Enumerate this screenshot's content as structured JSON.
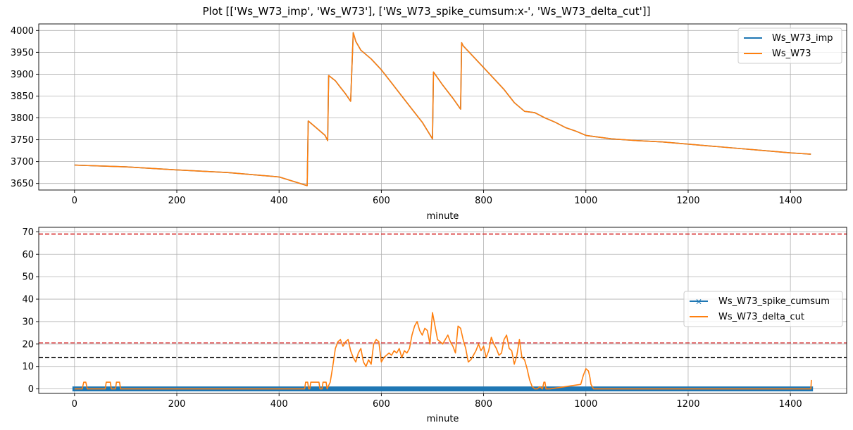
{
  "figure": {
    "title": "Plot [['Ws_W73_imp', 'Ws_W73'], ['Ws_W73_spike_cumsum:x-', 'Ws_W73_delta_cut']]"
  },
  "colors": {
    "blue": "#1f77b4",
    "orange": "#ff7f0e",
    "red_dashed": "#d62728",
    "black_dashed": "#000000"
  },
  "chart_data": [
    {
      "type": "line",
      "xlabel": "minute",
      "ylabel": "",
      "xlim": [
        -70,
        1510
      ],
      "ylim": [
        3635,
        4015
      ],
      "xticks": [
        0,
        200,
        400,
        600,
        800,
        1000,
        1200,
        1400
      ],
      "yticks": [
        3650,
        3700,
        3750,
        3800,
        3850,
        3900,
        3950,
        4000
      ],
      "grid": true,
      "legend": "top-right",
      "series": [
        {
          "name": "Ws_W73_imp",
          "color": "#1f77b4",
          "x": [
            0,
            100,
            200,
            300,
            400,
            455,
            457,
            470,
            490,
            495,
            497,
            510,
            520,
            530,
            540,
            545,
            550,
            560,
            580,
            600,
            620,
            640,
            660,
            680,
            700,
            702,
            720,
            740,
            755,
            757,
            760,
            780,
            800,
            820,
            840,
            860,
            880,
            900,
            920,
            940,
            960,
            980,
            1000,
            1050,
            1100,
            1150,
            1200,
            1250,
            1300,
            1350,
            1400,
            1440
          ],
          "y": [
            3692,
            3688,
            3681,
            3675,
            3665,
            3645,
            3793,
            3780,
            3760,
            3748,
            3897,
            3885,
            3870,
            3855,
            3838,
            3995,
            3975,
            3955,
            3935,
            3910,
            3880,
            3850,
            3820,
            3790,
            3752,
            3905,
            3875,
            3845,
            3820,
            3972,
            3965,
            3940,
            3915,
            3890,
            3865,
            3835,
            3815,
            3812,
            3800,
            3790,
            3778,
            3770,
            3760,
            3752,
            3748,
            3745,
            3740,
            3735,
            3730,
            3725,
            3720,
            3717
          ]
        },
        {
          "name": "Ws_W73",
          "color": "#ff7f0e",
          "x": [
            0,
            100,
            200,
            300,
            400,
            455,
            457,
            470,
            490,
            495,
            497,
            510,
            520,
            530,
            540,
            545,
            550,
            560,
            580,
            600,
            620,
            640,
            660,
            680,
            700,
            702,
            720,
            740,
            755,
            757,
            760,
            780,
            800,
            820,
            840,
            860,
            880,
            900,
            920,
            940,
            960,
            980,
            1000,
            1050,
            1100,
            1150,
            1200,
            1250,
            1300,
            1350,
            1400,
            1440
          ],
          "y": [
            3692,
            3688,
            3681,
            3675,
            3665,
            3645,
            3793,
            3780,
            3760,
            3748,
            3897,
            3885,
            3870,
            3855,
            3838,
            3995,
            3975,
            3955,
            3935,
            3910,
            3880,
            3850,
            3820,
            3790,
            3752,
            3905,
            3875,
            3845,
            3820,
            3972,
            3965,
            3940,
            3915,
            3890,
            3865,
            3835,
            3815,
            3812,
            3800,
            3790,
            3778,
            3770,
            3760,
            3752,
            3748,
            3745,
            3740,
            3735,
            3730,
            3725,
            3720,
            3717
          ]
        }
      ]
    },
    {
      "type": "line",
      "xlabel": "minute",
      "ylabel": "",
      "xlim": [
        -70,
        1510
      ],
      "ylim": [
        -2,
        72
      ],
      "xticks": [
        0,
        200,
        400,
        600,
        800,
        1000,
        1200,
        1400
      ],
      "yticks": [
        0,
        10,
        20,
        30,
        40,
        50,
        60,
        70
      ],
      "grid": true,
      "legend": "center-right",
      "hlines": [
        {
          "y": 69,
          "color": "#d62728",
          "style": "dashed"
        },
        {
          "y": 20.5,
          "color": "#d62728",
          "style": "dashed"
        },
        {
          "y": 14,
          "color": "#000000",
          "style": "dashed"
        }
      ],
      "series": [
        {
          "name": "Ws_W73_spike_cumsum",
          "color": "#1f77b4",
          "marker": "x",
          "x": [
            0,
            1440
          ],
          "y": [
            0,
            0
          ]
        },
        {
          "name": "Ws_W73_delta_cut",
          "color": "#ff7f0e",
          "x": [
            0,
            15,
            18,
            22,
            25,
            60,
            62,
            70,
            72,
            80,
            82,
            88,
            90,
            450,
            452,
            456,
            458,
            460,
            462,
            478,
            480,
            484,
            486,
            492,
            494,
            500,
            505,
            510,
            515,
            520,
            525,
            530,
            535,
            540,
            545,
            550,
            555,
            560,
            565,
            570,
            575,
            580,
            585,
            590,
            595,
            600,
            605,
            610,
            615,
            620,
            625,
            630,
            635,
            640,
            645,
            650,
            655,
            660,
            665,
            670,
            675,
            680,
            685,
            690,
            695,
            700,
            705,
            710,
            715,
            720,
            725,
            730,
            735,
            740,
            745,
            750,
            755,
            760,
            765,
            770,
            775,
            780,
            785,
            790,
            795,
            800,
            805,
            810,
            815,
            820,
            825,
            830,
            835,
            840,
            845,
            850,
            855,
            860,
            865,
            870,
            875,
            880,
            885,
            890,
            895,
            900,
            905,
            910,
            915,
            918,
            920,
            922,
            925,
            930,
            990,
            995,
            1000,
            1005,
            1008,
            1010,
            1015,
            1440,
            1441
          ],
          "y": [
            0,
            0,
            3,
            3,
            0,
            0,
            3,
            3,
            0,
            0,
            3,
            3,
            0,
            0,
            3,
            3,
            0,
            0,
            3,
            3,
            0,
            0,
            3,
            3,
            0,
            3,
            10,
            18,
            21,
            22,
            19,
            21,
            22,
            17,
            14,
            12,
            16,
            18,
            12,
            10,
            13,
            11,
            20,
            22,
            21,
            12,
            14,
            15,
            16,
            15,
            17,
            16,
            18,
            14,
            17,
            16,
            18,
            24,
            28,
            30,
            26,
            24,
            27,
            26,
            20,
            34,
            28,
            22,
            21,
            20,
            22,
            24,
            21,
            19,
            16,
            28,
            27,
            22,
            18,
            12,
            13,
            15,
            17,
            20,
            17,
            19,
            14,
            17,
            23,
            20,
            18,
            15,
            16,
            22,
            24,
            18,
            17,
            11,
            15,
            22,
            14,
            13,
            9,
            4,
            1,
            0,
            0,
            1,
            0,
            3,
            3,
            0,
            0,
            0,
            2,
            6,
            9,
            8,
            5,
            2,
            0,
            0,
            4
          ]
        }
      ]
    }
  ]
}
